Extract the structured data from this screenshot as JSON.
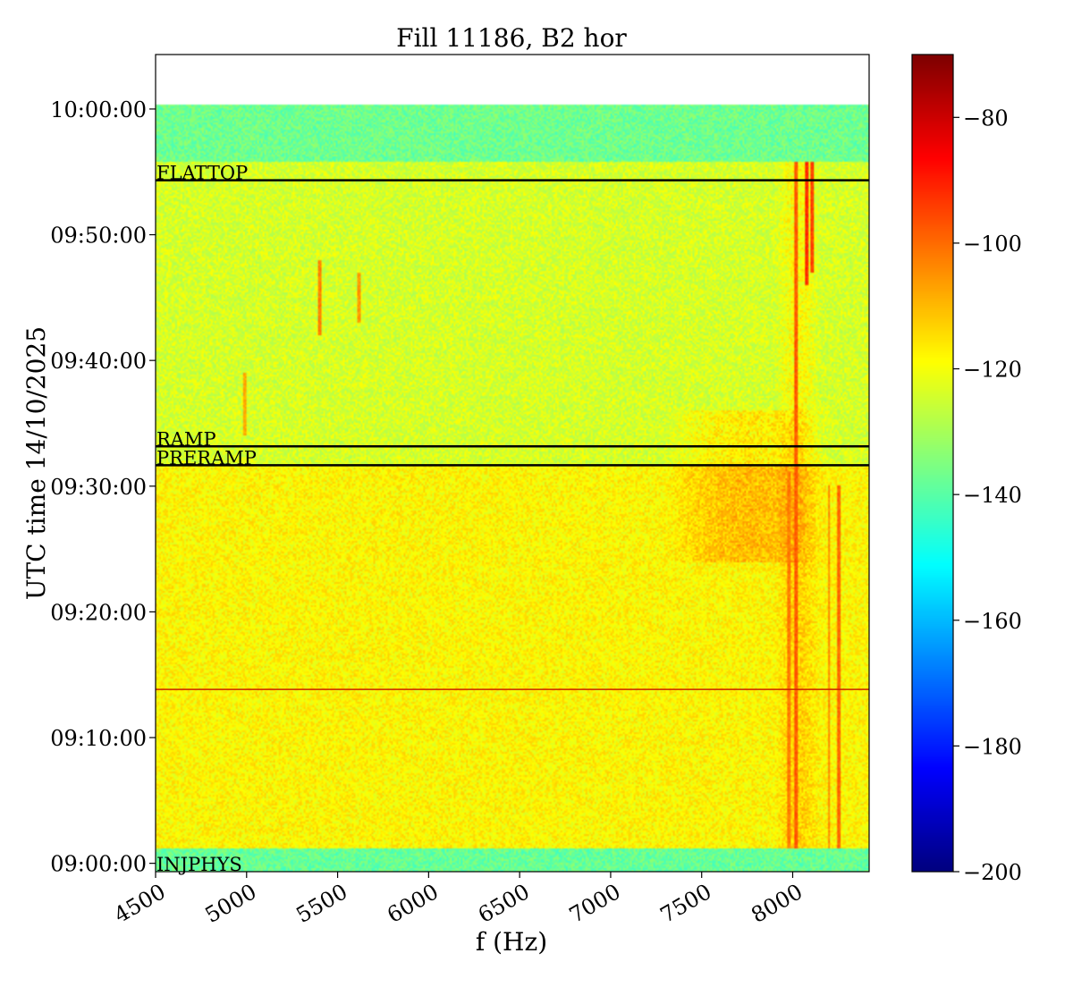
{
  "chart_data": {
    "type": "heatmap",
    "title": "Fill 11186, B2 hor",
    "xlabel": "f (Hz)",
    "ylabel": "UTC time 14/10/2025",
    "xlim": [
      4500,
      8420
    ],
    "ylim": [
      "08:59:20",
      "10:04:20"
    ],
    "x_ticks": [
      4500,
      5000,
      5500,
      6000,
      6500,
      7000,
      7500,
      8000
    ],
    "x_tick_labels": [
      "4500",
      "5000",
      "5500",
      "6000",
      "6500",
      "7000",
      "7500",
      "8000"
    ],
    "y_ticks": [
      "09:00:00",
      "09:10:00",
      "09:20:00",
      "09:30:00",
      "09:40:00",
      "09:50:00",
      "10:00:00"
    ],
    "y_tick_labels": [
      "09:00:00",
      "09:10:00",
      "09:20:00",
      "09:30:00",
      "09:40:00",
      "09:50:00",
      "10:00:00"
    ],
    "data_time_range": [
      "08:59:20",
      "10:00:20"
    ],
    "colorbar": {
      "range": [
        -200,
        -70
      ],
      "ticks": [
        -200,
        -180,
        -160,
        -140,
        -120,
        -100,
        -80
      ],
      "tick_labels": [
        "−200",
        "−180",
        "−160",
        "−140",
        "−120",
        "−100",
        "−80"
      ],
      "colormap": "jet"
    },
    "phase_markers": [
      {
        "label": "FLATTOP",
        "time": "09:54:20",
        "color": "#000000"
      },
      {
        "label": "RAMP",
        "time": "09:33:10",
        "color": "#000000"
      },
      {
        "label": "PRERAMP",
        "time": "09:31:40",
        "color": "#000000"
      },
      {
        "label": "INJPHYS",
        "time": "08:59:20",
        "color": "#000000"
      }
    ],
    "red_line": {
      "time": "09:13:50",
      "color": "#cc2200"
    },
    "regions": [
      {
        "t_start": "08:59:20",
        "t_end": "09:01:10",
        "level_dB": -138
      },
      {
        "t_start": "09:01:10",
        "t_end": "09:31:40",
        "level_dB": -118
      },
      {
        "t_start": "09:31:40",
        "t_end": "09:55:50",
        "level_dB": -124
      },
      {
        "t_start": "09:55:50",
        "t_end": "10:00:20",
        "level_dB": -137
      }
    ],
    "hotspots": [
      {
        "f": [
          7300,
          8200
        ],
        "t": [
          "09:24:00",
          "09:36:00"
        ],
        "boost_dB": 9
      },
      {
        "f": [
          7900,
          8150
        ],
        "t": [
          "09:01:10",
          "09:56:00"
        ],
        "boost_dB": 6
      }
    ],
    "spectral_lines": [
      {
        "f": 7980,
        "t": [
          "09:01:10",
          "09:31:00"
        ],
        "level_dB": -102
      },
      {
        "f": 8020,
        "t": [
          "09:01:10",
          "09:55:50"
        ],
        "level_dB": -98
      },
      {
        "f": 8080,
        "t": [
          "09:46:00",
          "09:55:50"
        ],
        "level_dB": -92
      },
      {
        "f": 8110,
        "t": [
          "09:47:00",
          "09:55:50"
        ],
        "level_dB": -95
      },
      {
        "f": 8200,
        "t": [
          "09:01:10",
          "09:30:00"
        ],
        "level_dB": -104
      },
      {
        "f": 8250,
        "t": [
          "09:01:10",
          "09:30:00"
        ],
        "level_dB": -100
      },
      {
        "f": 5400,
        "t": [
          "09:42:00",
          "09:48:00"
        ],
        "level_dB": -103
      },
      {
        "f": 5620,
        "t": [
          "09:43:00",
          "09:47:00"
        ],
        "level_dB": -106
      },
      {
        "f": 4990,
        "t": [
          "09:34:00",
          "09:39:00"
        ],
        "level_dB": -108
      }
    ]
  }
}
